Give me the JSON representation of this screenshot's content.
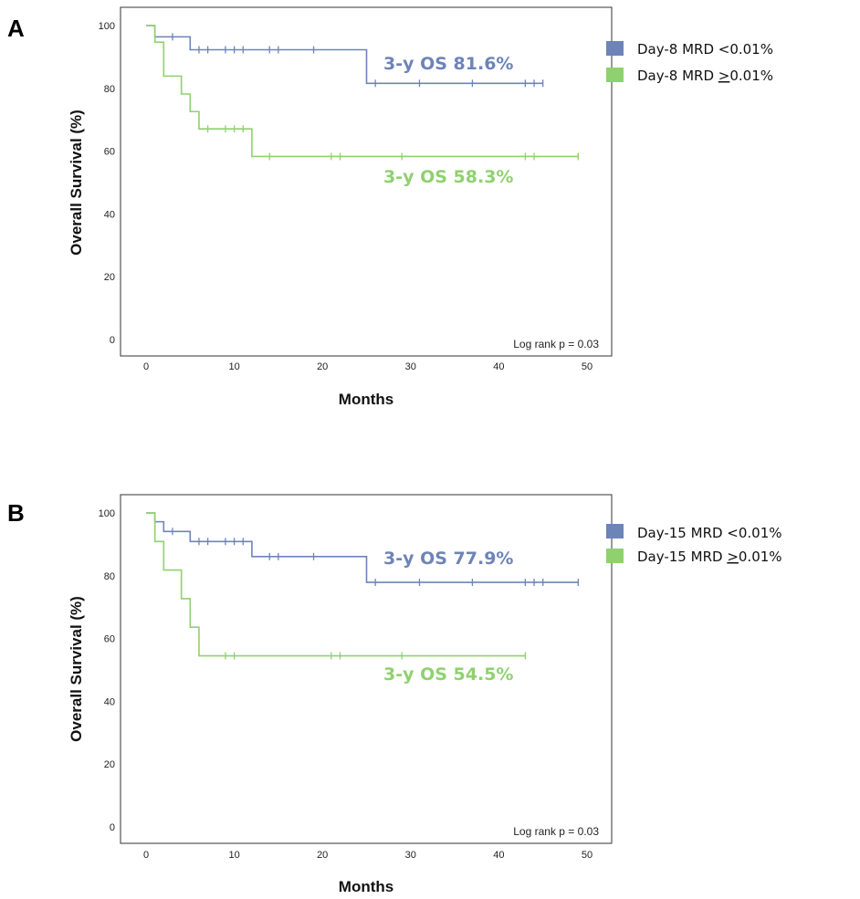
{
  "chart_data": [
    {
      "type": "line",
      "panel_label": "A",
      "xlabel": "Months",
      "ylabel": "Overall Survival (%)",
      "xlim": [
        -3,
        53
      ],
      "ylim": [
        -3,
        105
      ],
      "xticks": [
        0,
        10,
        20,
        30,
        40,
        50
      ],
      "yticks": [
        0,
        20,
        40,
        60,
        80,
        100
      ],
      "note": "Log rank p = 0.03",
      "legend_position": "right",
      "series": [
        {
          "name": "Day-8 MRD <0.01%",
          "legend_label": "Day-8 MRD <0.01%",
          "color": "#6d84b8",
          "steps": [
            [
              0,
              100
            ],
            [
              1,
              96.4
            ],
            [
              5,
              92.3
            ],
            [
              25,
              81.6
            ]
          ],
          "end_x": 45,
          "censored": [
            [
              1,
              96.4
            ],
            [
              3,
              96.4
            ],
            [
              6,
              92.3
            ],
            [
              7,
              92.3
            ],
            [
              9,
              92.3
            ],
            [
              10,
              92.3
            ],
            [
              11,
              92.3
            ],
            [
              14,
              92.3
            ],
            [
              15,
              92.3
            ],
            [
              19,
              92.3
            ],
            [
              26,
              81.6
            ],
            [
              31,
              81.6
            ],
            [
              37,
              81.6
            ],
            [
              43,
              81.6
            ],
            [
              44,
              81.6
            ],
            [
              45,
              81.6
            ]
          ],
          "annotation": "3-y OS 81.6%"
        },
        {
          "name": "Day-8 MRD >=0.01%",
          "legend_label_pre": "Day-8 MRD ",
          "legend_label_underlined": ">",
          "legend_label_post": "0.01%",
          "color": "#8fd16f",
          "steps": [
            [
              0,
              100
            ],
            [
              1,
              94.7
            ],
            [
              2,
              83.9
            ],
            [
              4,
              78.2
            ],
            [
              5,
              72.6
            ],
            [
              6,
              67.1
            ],
            [
              12,
              58.3
            ]
          ],
          "end_x": 49,
          "censored": [
            [
              7,
              67.1
            ],
            [
              9,
              67.1
            ],
            [
              10,
              67.1
            ],
            [
              11,
              67.1
            ],
            [
              14,
              58.3
            ],
            [
              21,
              58.3
            ],
            [
              22,
              58.3
            ],
            [
              29,
              58.3
            ],
            [
              43,
              58.3
            ],
            [
              44,
              58.3
            ],
            [
              49,
              58.3
            ]
          ],
          "annotation": "3-y OS 58.3%"
        }
      ]
    },
    {
      "type": "line",
      "panel_label": "B",
      "xlabel": "Months",
      "ylabel": "Overall Survival (%)",
      "xlim": [
        -3,
        53
      ],
      "ylim": [
        -3,
        105
      ],
      "xticks": [
        0,
        10,
        20,
        30,
        40,
        50
      ],
      "yticks": [
        0,
        20,
        40,
        60,
        80,
        100
      ],
      "note": "Log rank p = 0.03",
      "legend_position": "right",
      "series": [
        {
          "name": "Day-15 MRD <0.01%",
          "legend_label": "Day-15 MRD <0.01%",
          "color": "#6d84b8",
          "steps": [
            [
              0,
              100
            ],
            [
              1,
              97.2
            ],
            [
              2,
              94.1
            ],
            [
              5,
              90.9
            ],
            [
              12,
              86.1
            ],
            [
              25,
              77.9
            ]
          ],
          "end_x": 49,
          "censored": [
            [
              1,
              97.2
            ],
            [
              3,
              94.1
            ],
            [
              6,
              90.9
            ],
            [
              7,
              90.9
            ],
            [
              9,
              90.9
            ],
            [
              10,
              90.9
            ],
            [
              11,
              90.9
            ],
            [
              14,
              86.1
            ],
            [
              15,
              86.1
            ],
            [
              19,
              86.1
            ],
            [
              26,
              77.9
            ],
            [
              31,
              77.9
            ],
            [
              37,
              77.9
            ],
            [
              43,
              77.9
            ],
            [
              44,
              77.9
            ],
            [
              45,
              77.9
            ],
            [
              49,
              77.9
            ]
          ],
          "annotation": "3-y OS 77.9%"
        },
        {
          "name": "Day-15 MRD >=0.01%",
          "legend_label_pre": "Day-15 MRD ",
          "legend_label_underlined": ">",
          "legend_label_post": "0.01%",
          "color": "#8fd16f",
          "steps": [
            [
              0,
              100
            ],
            [
              1,
              90.9
            ],
            [
              2,
              81.8
            ],
            [
              4,
              72.7
            ],
            [
              5,
              63.6
            ],
            [
              6,
              54.5
            ]
          ],
          "end_x": 43,
          "censored": [
            [
              9,
              54.5
            ],
            [
              10,
              54.5
            ],
            [
              21,
              54.5
            ],
            [
              22,
              54.5
            ],
            [
              29,
              54.5
            ],
            [
              43,
              54.5
            ]
          ],
          "annotation": "3-y OS 54.5%"
        }
      ]
    }
  ]
}
